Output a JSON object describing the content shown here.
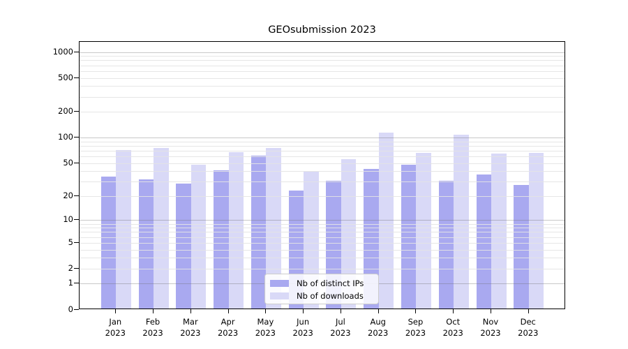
{
  "title": "GEOsubmission 2023",
  "chart_data": {
    "type": "bar",
    "title": "GEOsubmission 2023",
    "categories": [
      "Jan",
      "Feb",
      "Mar",
      "Apr",
      "May",
      "Jun",
      "Jul",
      "Aug",
      "Sep",
      "Oct",
      "Nov",
      "Dec"
    ],
    "category_year": "2023",
    "series": [
      {
        "name": "Nb of distinct IPs",
        "color": "#a9a9f0",
        "values": [
          34,
          31,
          28,
          40,
          60,
          23,
          30,
          42,
          47,
          30,
          36,
          27
        ]
      },
      {
        "name": "Nb of downloads",
        "color": "#d9d9f7",
        "values": [
          70,
          74,
          47,
          66,
          74,
          39,
          55,
          113,
          65,
          105,
          64,
          65
        ]
      }
    ],
    "xlabel": "",
    "ylabel": "",
    "yscale": "log1p",
    "ylim": [
      0,
      1300
    ],
    "yticks": [
      0,
      1,
      2,
      5,
      10,
      20,
      50,
      100,
      200,
      500,
      1000
    ],
    "major_gridlines": [
      1,
      10,
      100,
      1000
    ],
    "minor_gridlines": [
      2,
      3,
      4,
      5,
      6,
      7,
      8,
      9,
      20,
      30,
      40,
      50,
      60,
      70,
      80,
      90,
      200,
      300,
      400,
      500,
      600,
      700,
      800,
      900
    ],
    "grid": true,
    "legend_position": "bottom-center"
  },
  "colors": {
    "background": "#ffffff",
    "bar_distinct_ips": "#a9a9f0",
    "bar_downloads": "#d9d9f7",
    "axis": "#000000",
    "grid_minor": "#e4e4e4",
    "grid_major": "#9a9a9a",
    "legend_border": "#cccccc"
  }
}
